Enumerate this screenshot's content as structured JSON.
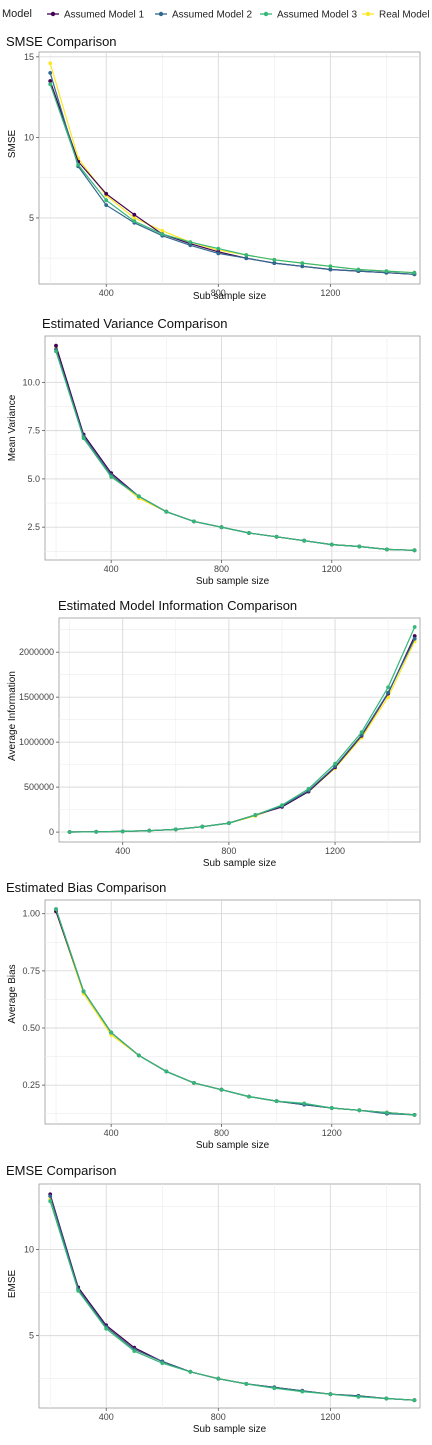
{
  "legend": {
    "title": "Model",
    "items": [
      {
        "label": "Assumed Model 1",
        "color": "#440154"
      },
      {
        "label": "Assumed Model 2",
        "color": "#31688e"
      },
      {
        "label": "Assumed Model 3",
        "color": "#35b779"
      },
      {
        "label": "Real Model",
        "color": "#fde725"
      }
    ]
  },
  "chart_data": [
    {
      "type": "line",
      "title": "SMSE Comparison",
      "xlabel": "Sub sample size",
      "ylabel": "SMSE",
      "xlim": [
        160,
        1520
      ],
      "ylim": [
        0.9,
        15.3
      ],
      "xticks": [
        400,
        800,
        1200
      ],
      "yticks": [
        5,
        10,
        15
      ],
      "ytick_labels": [
        "5",
        "10",
        "15"
      ],
      "grid": true,
      "x": [
        200,
        300,
        400,
        500,
        600,
        700,
        800,
        900,
        1000,
        1100,
        1200,
        1300,
        1400,
        1500
      ],
      "series": [
        {
          "name": "Assumed Model 1",
          "values": [
            13.5,
            8.5,
            6.5,
            5.2,
            4.0,
            3.4,
            2.9,
            2.5,
            2.2,
            2.0,
            1.8,
            1.7,
            1.6,
            1.5
          ]
        },
        {
          "name": "Assumed Model 2",
          "values": [
            14.0,
            8.2,
            5.8,
            4.7,
            3.9,
            3.3,
            2.8,
            2.5,
            2.2,
            2.0,
            1.8,
            1.7,
            1.6,
            1.5
          ]
        },
        {
          "name": "Assumed Model 3",
          "values": [
            13.3,
            8.3,
            6.1,
            4.8,
            4.0,
            3.5,
            3.1,
            2.7,
            2.4,
            2.2,
            2.0,
            1.8,
            1.7,
            1.6
          ]
        },
        {
          "name": "Real Model",
          "values": [
            14.6,
            8.7,
            6.4,
            5.0,
            4.2,
            3.5,
            3.0,
            2.7,
            2.4,
            2.2,
            2.0,
            1.8,
            1.7,
            1.6
          ]
        }
      ]
    },
    {
      "type": "line",
      "title": "Estimated Variance Comparison",
      "xlabel": "Sub sample size",
      "ylabel": "Mean Variance",
      "xlim": [
        160,
        1520
      ],
      "ylim": [
        0.8,
        12.4
      ],
      "xticks": [
        400,
        800,
        1200
      ],
      "yticks": [
        2.5,
        5.0,
        7.5,
        10.0
      ],
      "ytick_labels": [
        "2.5",
        "5.0",
        "7.5",
        "10.0"
      ],
      "grid": true,
      "x": [
        200,
        300,
        400,
        500,
        600,
        700,
        800,
        900,
        1000,
        1100,
        1200,
        1300,
        1400,
        1500
      ],
      "series": [
        {
          "name": "Assumed Model 1",
          "values": [
            11.9,
            7.3,
            5.3,
            4.1,
            3.3,
            2.8,
            2.5,
            2.2,
            2.0,
            1.8,
            1.6,
            1.5,
            1.35,
            1.3
          ]
        },
        {
          "name": "Assumed Model 2",
          "values": [
            11.7,
            7.2,
            5.2,
            4.1,
            3.3,
            2.8,
            2.5,
            2.2,
            2.0,
            1.8,
            1.6,
            1.5,
            1.35,
            1.3
          ]
        },
        {
          "name": "Assumed Model 3",
          "values": [
            11.6,
            7.1,
            5.1,
            4.1,
            3.3,
            2.8,
            2.5,
            2.2,
            2.0,
            1.8,
            1.6,
            1.5,
            1.35,
            1.3
          ]
        },
        {
          "name": "Real Model",
          "values": [
            11.8,
            7.2,
            5.2,
            4.0,
            3.3,
            2.8,
            2.5,
            2.2,
            2.0,
            1.8,
            1.6,
            1.5,
            1.35,
            1.3
          ]
        }
      ]
    },
    {
      "type": "line",
      "title": "Estimated Model Information Comparison",
      "xlabel": "Sub sample size",
      "ylabel": "Average Information",
      "xlim": [
        160,
        1520
      ],
      "ylim": [
        -110000,
        2380000
      ],
      "xticks": [
        400,
        800,
        1200
      ],
      "yticks": [
        0,
        500000,
        1000000,
        1500000,
        2000000
      ],
      "ytick_labels": [
        "0",
        "500000",
        "1000000",
        "1500000",
        "2000000"
      ],
      "grid": true,
      "x": [
        200,
        300,
        400,
        500,
        600,
        700,
        800,
        900,
        1000,
        1100,
        1200,
        1300,
        1400,
        1500
      ],
      "series": [
        {
          "name": "Assumed Model 1",
          "values": [
            1000,
            3000,
            8000,
            16000,
            30000,
            60000,
            100000,
            190000,
            280000,
            450000,
            720000,
            1070000,
            1540000,
            2180000
          ]
        },
        {
          "name": "Assumed Model 2",
          "values": [
            1000,
            3000,
            8000,
            16000,
            30000,
            60000,
            100000,
            190000,
            290000,
            460000,
            730000,
            1080000,
            1550000,
            2150000
          ]
        },
        {
          "name": "Assumed Model 3",
          "values": [
            1000,
            3000,
            8000,
            16000,
            30000,
            60000,
            100000,
            190000,
            300000,
            480000,
            760000,
            1110000,
            1610000,
            2280000
          ]
        },
        {
          "name": "Real Model",
          "values": [
            1000,
            3000,
            8000,
            16000,
            30000,
            60000,
            100000,
            180000,
            290000,
            450000,
            710000,
            1050000,
            1500000,
            2120000
          ]
        }
      ]
    },
    {
      "type": "line",
      "title": "Estimated Bias Comparison",
      "xlabel": "Sub sample size",
      "ylabel": "Average Bias",
      "xlim": [
        160,
        1520
      ],
      "ylim": [
        0.08,
        1.06
      ],
      "xticks": [
        400,
        800,
        1200
      ],
      "yticks": [
        0.25,
        0.5,
        0.75,
        1.0
      ],
      "ytick_labels": [
        "0.25",
        "0.50",
        "0.75",
        "1.00"
      ],
      "grid": true,
      "x": [
        200,
        300,
        400,
        500,
        600,
        700,
        800,
        900,
        1000,
        1100,
        1200,
        1300,
        1400,
        1500
      ],
      "series": [
        {
          "name": "Assumed Model 1",
          "values": [
            1.01,
            0.66,
            0.48,
            0.38,
            0.31,
            0.26,
            0.23,
            0.2,
            0.18,
            0.165,
            0.15,
            0.14,
            0.13,
            0.12
          ]
        },
        {
          "name": "Assumed Model 2",
          "values": [
            1.02,
            0.66,
            0.48,
            0.38,
            0.31,
            0.26,
            0.23,
            0.2,
            0.18,
            0.165,
            0.15,
            0.14,
            0.125,
            0.12
          ]
        },
        {
          "name": "Assumed Model 3",
          "values": [
            1.02,
            0.66,
            0.48,
            0.38,
            0.31,
            0.26,
            0.23,
            0.2,
            0.18,
            0.17,
            0.15,
            0.14,
            0.13,
            0.12
          ]
        },
        {
          "name": "Real Model",
          "values": [
            1.01,
            0.65,
            0.47,
            0.38,
            0.31,
            0.26,
            0.23,
            0.2,
            0.18,
            0.165,
            0.15,
            0.14,
            0.13,
            0.12
          ]
        }
      ]
    },
    {
      "type": "line",
      "title": "EMSE Comparison",
      "xlabel": "Sub sample size",
      "ylabel": "EMSE",
      "xlim": [
        160,
        1520
      ],
      "ylim": [
        0.8,
        13.8
      ],
      "xticks": [
        400,
        800,
        1200
      ],
      "yticks": [
        5,
        10
      ],
      "ytick_labels": [
        "5",
        "10"
      ],
      "grid": true,
      "x": [
        200,
        300,
        400,
        500,
        600,
        700,
        800,
        900,
        1000,
        1100,
        1200,
        1300,
        1400,
        1500
      ],
      "series": [
        {
          "name": "Assumed Model 1",
          "values": [
            13.2,
            7.8,
            5.6,
            4.3,
            3.5,
            2.9,
            2.5,
            2.2,
            2.0,
            1.8,
            1.6,
            1.5,
            1.35,
            1.25
          ]
        },
        {
          "name": "Assumed Model 2",
          "values": [
            13.1,
            7.7,
            5.5,
            4.2,
            3.5,
            2.9,
            2.5,
            2.2,
            2.0,
            1.8,
            1.6,
            1.5,
            1.35,
            1.25
          ]
        },
        {
          "name": "Assumed Model 3",
          "values": [
            12.8,
            7.6,
            5.4,
            4.1,
            3.4,
            2.9,
            2.5,
            2.2,
            1.95,
            1.75,
            1.6,
            1.45,
            1.35,
            1.25
          ]
        },
        {
          "name": "Real Model",
          "values": [
            12.9,
            7.7,
            5.5,
            4.2,
            3.5,
            2.9,
            2.5,
            2.2,
            2.0,
            1.8,
            1.6,
            1.5,
            1.35,
            1.25
          ]
        }
      ]
    }
  ]
}
